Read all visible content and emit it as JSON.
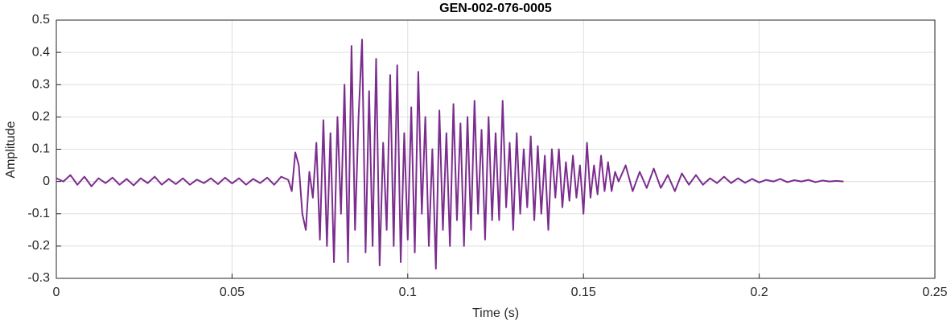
{
  "chart_data": {
    "type": "line",
    "title": "GEN-002-076-0005",
    "x_label": "Time (s)",
    "y_label": "Amplitude",
    "x": [
      0,
      0.002,
      0.004,
      0.006,
      0.008,
      0.01,
      0.012,
      0.014,
      0.016,
      0.018,
      0.02,
      0.022,
      0.024,
      0.026,
      0.028,
      0.03,
      0.032,
      0.034,
      0.036,
      0.038,
      0.04,
      0.042,
      0.044,
      0.046,
      0.048,
      0.05,
      0.052,
      0.054,
      0.056,
      0.058,
      0.06,
      0.062,
      0.064,
      0.066,
      0.067,
      0.068,
      0.069,
      0.07,
      0.071,
      0.072,
      0.073,
      0.074,
      0.075,
      0.076,
      0.077,
      0.078,
      0.079,
      0.08,
      0.081,
      0.082,
      0.083,
      0.084,
      0.085,
      0.086,
      0.087,
      0.088,
      0.089,
      0.09,
      0.091,
      0.092,
      0.093,
      0.094,
      0.095,
      0.096,
      0.097,
      0.098,
      0.099,
      0.1,
      0.101,
      0.102,
      0.103,
      0.104,
      0.105,
      0.106,
      0.107,
      0.108,
      0.109,
      0.11,
      0.111,
      0.112,
      0.113,
      0.114,
      0.115,
      0.116,
      0.117,
      0.118,
      0.119,
      0.12,
      0.121,
      0.122,
      0.123,
      0.124,
      0.125,
      0.126,
      0.127,
      0.128,
      0.129,
      0.13,
      0.131,
      0.132,
      0.133,
      0.134,
      0.135,
      0.136,
      0.137,
      0.138,
      0.139,
      0.14,
      0.141,
      0.142,
      0.143,
      0.144,
      0.145,
      0.146,
      0.147,
      0.148,
      0.149,
      0.15,
      0.151,
      0.152,
      0.153,
      0.154,
      0.155,
      0.156,
      0.157,
      0.158,
      0.159,
      0.16,
      0.162,
      0.164,
      0.166,
      0.168,
      0.17,
      0.172,
      0.174,
      0.176,
      0.178,
      0.18,
      0.182,
      0.184,
      0.186,
      0.188,
      0.19,
      0.192,
      0.194,
      0.196,
      0.198,
      0.2,
      0.202,
      0.204,
      0.206,
      0.208,
      0.21,
      0.212,
      0.214,
      0.216,
      0.218,
      0.22,
      0.222,
      0.224
    ],
    "series": [
      {
        "name": "Amplitude",
        "color": "#7b2d8e",
        "values": [
          0.01,
          0.0,
          0.02,
          -0.01,
          0.015,
          -0.015,
          0.01,
          -0.005,
          0.012,
          -0.01,
          0.008,
          -0.012,
          0.01,
          -0.005,
          0.015,
          -0.01,
          0.008,
          -0.008,
          0.01,
          -0.01,
          0.006,
          -0.005,
          0.01,
          -0.008,
          0.012,
          -0.006,
          0.01,
          -0.01,
          0.008,
          -0.005,
          0.012,
          -0.01,
          0.015,
          0.005,
          -0.03,
          0.09,
          0.05,
          -0.1,
          -0.15,
          0.03,
          -0.05,
          0.12,
          -0.18,
          0.19,
          -0.2,
          0.15,
          -0.25,
          0.2,
          -0.1,
          0.3,
          -0.25,
          0.42,
          -0.15,
          0.2,
          0.44,
          -0.22,
          0.28,
          -0.2,
          0.38,
          -0.26,
          0.12,
          -0.15,
          0.33,
          -0.2,
          0.36,
          -0.25,
          0.15,
          -0.18,
          0.23,
          -0.22,
          0.34,
          -0.1,
          0.2,
          -0.2,
          0.1,
          -0.27,
          0.22,
          -0.15,
          0.15,
          -0.2,
          0.24,
          -0.12,
          0.18,
          -0.2,
          0.2,
          -0.15,
          0.25,
          -0.1,
          0.16,
          -0.18,
          0.2,
          -0.12,
          0.15,
          -0.12,
          0.25,
          -0.08,
          0.12,
          -0.15,
          0.15,
          -0.1,
          0.1,
          -0.08,
          0.14,
          -0.12,
          0.11,
          -0.1,
          0.08,
          -0.15,
          0.1,
          -0.05,
          0.1,
          -0.08,
          0.06,
          -0.06,
          0.08,
          -0.05,
          0.05,
          -0.1,
          0.12,
          -0.05,
          0.05,
          -0.04,
          0.08,
          -0.03,
          0.06,
          -0.03,
          0.03,
          0.0,
          0.05,
          -0.03,
          0.03,
          -0.02,
          0.04,
          -0.02,
          0.02,
          -0.03,
          0.025,
          -0.01,
          0.02,
          -0.01,
          0.01,
          -0.005,
          0.015,
          -0.005,
          0.01,
          -0.004,
          0.008,
          -0.003,
          0.005,
          0.0,
          0.008,
          -0.002,
          0.004,
          0.0,
          0.005,
          -0.002,
          0.003,
          0.0,
          0.002,
          0.0
        ]
      }
    ],
    "xlim": [
      0,
      0.25
    ],
    "xticks": [
      0,
      0.05,
      0.1,
      0.15,
      0.2,
      0.25
    ],
    "ylim": [
      -0.3,
      0.5
    ],
    "yticks": [
      -0.3,
      -0.2,
      -0.1,
      0,
      0.1,
      0.2,
      0.3,
      0.4,
      0.5
    ],
    "grid": true
  }
}
